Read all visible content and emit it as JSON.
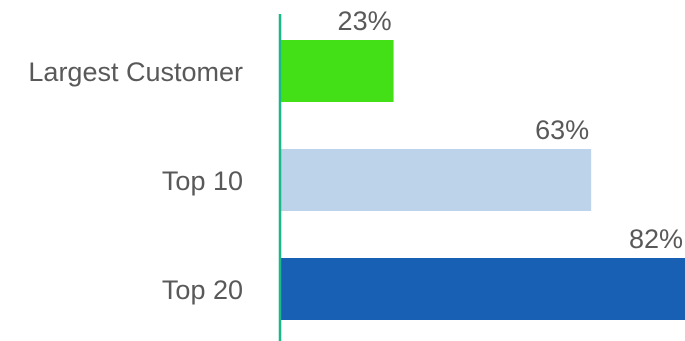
{
  "chart_data": {
    "type": "bar",
    "orientation": "horizontal",
    "categories": [
      "Largest Customer",
      "Top 10",
      "Top 20"
    ],
    "values": [
      23,
      63,
      82
    ],
    "value_labels": [
      "23%",
      "63%",
      "82%"
    ],
    "colors": [
      "#44E017",
      "#BDD3EA",
      "#1860B4"
    ],
    "axis_color": "#1BB88A",
    "title": "",
    "xlabel": "",
    "ylabel": "",
    "xlim": [
      0,
      82
    ],
    "grid": false,
    "legend": "none"
  }
}
